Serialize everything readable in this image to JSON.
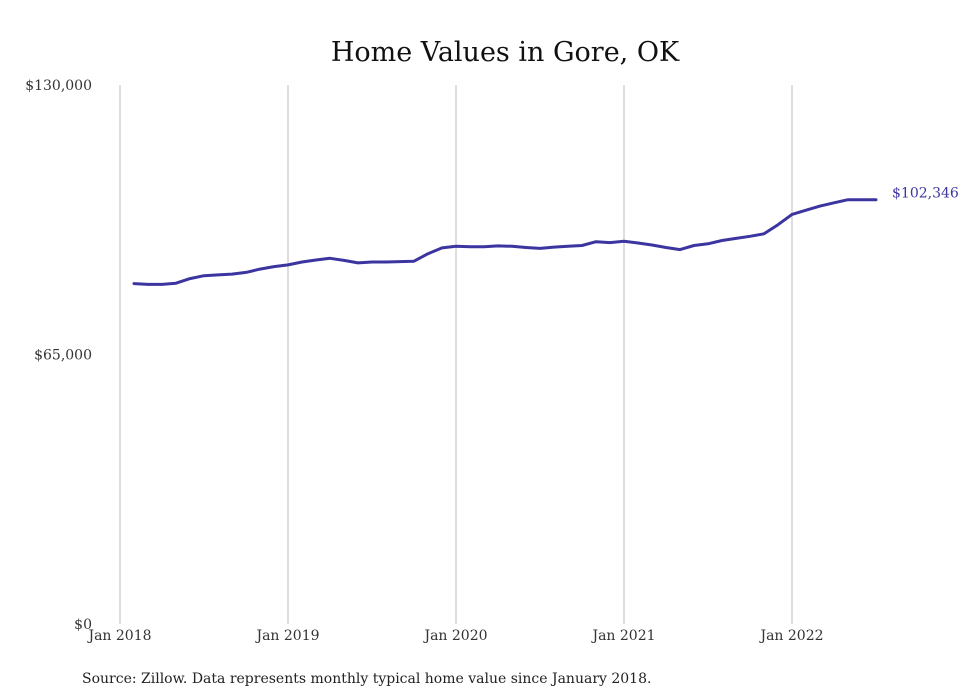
{
  "chart_data": {
    "type": "line",
    "title": "Home Values in Gore, OK",
    "xlabel": "",
    "ylabel": "",
    "ylim": [
      0,
      130000
    ],
    "y_ticks": [
      "$0",
      "$65,000",
      "$130,000"
    ],
    "y_tick_values": [
      0,
      65000,
      130000
    ],
    "x_ticks": [
      "Jan 2018",
      "Jan 2019",
      "Jan 2020",
      "Jan 2021",
      "Jan 2022"
    ],
    "x_tick_dates": [
      "2018-01",
      "2019-01",
      "2020-01",
      "2021-01",
      "2022-01"
    ],
    "grid": "vertical",
    "line_color": "#3c35a0",
    "end_label": "$102,346",
    "x": [
      "2018-02",
      "2018-03",
      "2018-04",
      "2018-05",
      "2018-06",
      "2018-07",
      "2018-08",
      "2018-09",
      "2018-10",
      "2018-11",
      "2018-12",
      "2019-01",
      "2019-02",
      "2019-03",
      "2019-04",
      "2019-05",
      "2019-06",
      "2019-07",
      "2019-08",
      "2019-09",
      "2019-10",
      "2019-11",
      "2019-12",
      "2020-01",
      "2020-02",
      "2020-03",
      "2020-04",
      "2020-05",
      "2020-06",
      "2020-07",
      "2020-08",
      "2020-09",
      "2020-10",
      "2020-11",
      "2020-12",
      "2021-01",
      "2021-02",
      "2021-03",
      "2021-04",
      "2021-05",
      "2021-06",
      "2021-07",
      "2021-08",
      "2021-09",
      "2021-10",
      "2021-11",
      "2021-12",
      "2022-01",
      "2022-02",
      "2022-03",
      "2022-04",
      "2022-05",
      "2022-06",
      "2022-07"
    ],
    "series": [
      {
        "values": [
          82100,
          81900,
          81900,
          82200,
          83300,
          84000,
          84200,
          84400,
          84800,
          85600,
          86200,
          86600,
          87300,
          87800,
          88200,
          87700,
          87100,
          87300,
          87300,
          87400,
          87500,
          89300,
          90700,
          91100,
          91000,
          91000,
          91200,
          91100,
          90800,
          90600,
          90900,
          91100,
          91300,
          92200,
          92000,
          92300,
          91900,
          91400,
          90800,
          90300,
          91300,
          91700,
          92500,
          93000,
          93500,
          94100,
          96300,
          98800,
          99800,
          100800,
          101600,
          102346,
          102346,
          102346
        ]
      }
    ]
  },
  "footer": {
    "source": "Source: Zillow. Data represents monthly typical home value since January 2018."
  }
}
